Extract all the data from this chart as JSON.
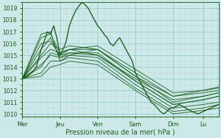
{
  "xlabel": "Pression niveau de la mer( hPa )",
  "bg_color": "#cce8e8",
  "plot_bg_color": "#cce8e8",
  "grid_major_color": "#99cccc",
  "grid_minor_color": "#b3d9d9",
  "line_color": "#1a5c1a",
  "yticks": [
    1010,
    1011,
    1012,
    1013,
    1014,
    1015,
    1016,
    1017,
    1018,
    1019
  ],
  "ylim": [
    1009.8,
    1019.5
  ],
  "xlim": [
    0,
    125
  ],
  "day_labels": [
    "Mer",
    "Jeu",
    "Ven",
    "Sam",
    "Dim",
    "Lu"
  ],
  "day_positions": [
    0,
    24,
    48,
    72,
    96,
    115
  ],
  "xlabel_fontsize": 7,
  "tick_fontsize": 6,
  "ensemble_lines": [
    {
      "x": [
        0,
        12,
        18,
        24,
        30,
        48,
        72,
        96,
        115,
        125
      ],
      "y": [
        1013.0,
        1016.8,
        1017.0,
        1014.5,
        1015.0,
        1015.5,
        1013.2,
        1011.0,
        1011.5,
        1011.8
      ]
    },
    {
      "x": [
        0,
        12,
        18,
        24,
        30,
        48,
        72,
        96,
        115,
        125
      ],
      "y": [
        1013.0,
        1015.5,
        1016.5,
        1014.8,
        1015.2,
        1015.2,
        1012.8,
        1010.8,
        1011.2,
        1011.5
      ]
    },
    {
      "x": [
        0,
        12,
        18,
        24,
        30,
        48,
        72,
        96,
        115,
        125
      ],
      "y": [
        1013.0,
        1016.0,
        1016.2,
        1015.0,
        1015.5,
        1015.8,
        1013.8,
        1011.8,
        1012.0,
        1012.2
      ]
    },
    {
      "x": [
        0,
        12,
        18,
        24,
        30,
        48,
        72,
        96,
        115,
        125
      ],
      "y": [
        1013.0,
        1014.2,
        1015.0,
        1014.8,
        1015.0,
        1014.8,
        1012.5,
        1010.5,
        1010.8,
        1011.0
      ]
    },
    {
      "x": [
        0,
        12,
        18,
        24,
        30,
        48,
        72,
        96,
        115,
        125
      ],
      "y": [
        1013.0,
        1014.8,
        1015.5,
        1015.2,
        1015.5,
        1015.0,
        1013.0,
        1011.2,
        1011.5,
        1011.8
      ]
    },
    {
      "x": [
        0,
        12,
        18,
        24,
        30,
        48,
        72,
        96,
        115,
        125
      ],
      "y": [
        1013.0,
        1015.0,
        1016.0,
        1015.5,
        1015.8,
        1015.5,
        1013.5,
        1011.5,
        1011.8,
        1012.0
      ]
    },
    {
      "x": [
        0,
        12,
        18,
        24,
        30,
        48,
        72,
        96,
        115,
        125
      ],
      "y": [
        1013.0,
        1013.5,
        1014.5,
        1014.5,
        1014.8,
        1014.5,
        1012.2,
        1010.2,
        1010.5,
        1010.8
      ]
    },
    {
      "x": [
        0,
        12,
        18,
        24,
        30,
        48,
        72,
        96,
        115,
        125
      ],
      "y": [
        1013.0,
        1014.0,
        1015.2,
        1015.0,
        1015.2,
        1015.0,
        1012.8,
        1010.8,
        1011.2,
        1011.5
      ]
    },
    {
      "x": [
        0,
        12,
        18,
        24,
        30,
        48,
        72,
        96,
        115,
        125
      ],
      "y": [
        1013.0,
        1013.2,
        1014.0,
        1014.2,
        1014.5,
        1014.2,
        1012.0,
        1010.0,
        1010.3,
        1010.5
      ]
    },
    {
      "x": [
        0,
        12,
        18,
        24,
        30,
        48,
        72,
        96,
        115,
        125
      ],
      "y": [
        1013.0,
        1016.5,
        1016.8,
        1015.2,
        1015.5,
        1015.5,
        1013.2,
        1011.5,
        1012.0,
        1012.3
      ]
    }
  ],
  "main_line_x": [
    0,
    3,
    6,
    9,
    12,
    14,
    16,
    18,
    20,
    22,
    24,
    26,
    28,
    30,
    32,
    34,
    36,
    38,
    40,
    42,
    44,
    46,
    48,
    50,
    52,
    54,
    56,
    58,
    60,
    62,
    64,
    66,
    68,
    70,
    72,
    74,
    76,
    78,
    80,
    82,
    84,
    86,
    88,
    90,
    92,
    94,
    96,
    100,
    104,
    108,
    112,
    115,
    120,
    125
  ],
  "main_line_y": [
    1013.0,
    1013.2,
    1013.5,
    1014.0,
    1015.5,
    1016.2,
    1017.0,
    1016.8,
    1017.5,
    1016.5,
    1015.0,
    1015.5,
    1016.2,
    1017.5,
    1018.2,
    1018.8,
    1019.2,
    1019.5,
    1019.3,
    1019.0,
    1018.5,
    1018.0,
    1017.5,
    1017.2,
    1016.8,
    1016.5,
    1016.0,
    1015.8,
    1016.2,
    1016.5,
    1016.0,
    1015.5,
    1015.0,
    1014.5,
    1013.5,
    1013.0,
    1012.5,
    1012.0,
    1011.5,
    1011.0,
    1010.8,
    1010.5,
    1010.2,
    1010.0,
    1010.2,
    1010.5,
    1010.5,
    1010.8,
    1010.5,
    1010.2,
    1010.0,
    1010.2,
    1010.5,
    1010.8
  ]
}
